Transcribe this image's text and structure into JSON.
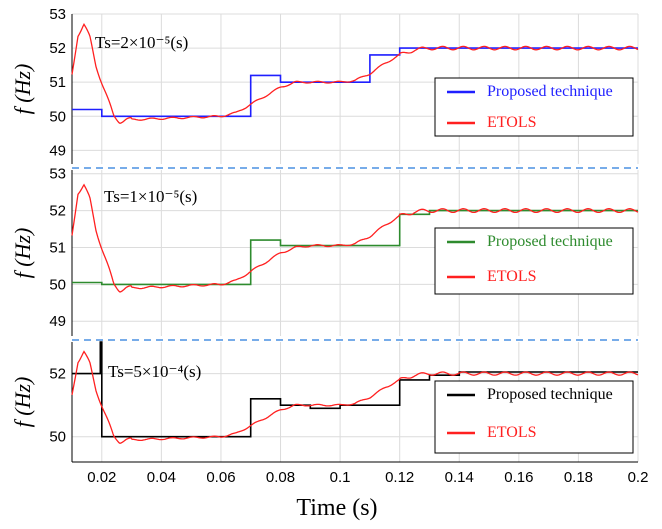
{
  "chart_data": {
    "type": "line",
    "xlabel": "Time (s)",
    "x_ticks": [
      "0.02",
      "0.04",
      "0.06",
      "0.08",
      "0.1",
      "0.12",
      "0.14",
      "0.16",
      "0.18",
      "0.2"
    ],
    "xlim": [
      0.01,
      0.2
    ],
    "grid": true,
    "panels": [
      {
        "ylabel": "f (Hz)",
        "annotation": "Ts=2×10⁻⁵(s)",
        "ylim": [
          48.6,
          53
        ],
        "y_ticks": [
          "53",
          "52",
          "51",
          "50",
          "49"
        ],
        "legend_position": "right",
        "series": [
          {
            "name": "Proposed technique",
            "color": "#1f1fff",
            "kind": "step",
            "x": [
              0.01,
              0.02,
              0.03,
              0.06,
              0.07,
              0.08,
              0.09,
              0.1,
              0.11,
              0.12,
              0.13,
              0.14,
              0.2
            ],
            "y": [
              50.2,
              50.0,
              50.0,
              50.0,
              51.2,
              51.0,
              51.0,
              51.0,
              51.8,
              52.0,
              52.0,
              52.0,
              52.0
            ]
          },
          {
            "name": "ETOLS",
            "color": "#ff2020",
            "kind": "ripple",
            "x": [
              0.01,
              0.012,
              0.014,
              0.016,
              0.018,
              0.02,
              0.022,
              0.024,
              0.026,
              0.028,
              0.03,
              0.06,
              0.065,
              0.07,
              0.075,
              0.08,
              0.085,
              0.09,
              0.095,
              0.1,
              0.105,
              0.11,
              0.115,
              0.12,
              0.125,
              0.13,
              0.135,
              0.14,
              0.2
            ],
            "y": [
              51.2,
              52.4,
              52.7,
              52.3,
              51.5,
              51.0,
              50.5,
              50.0,
              49.85,
              49.9,
              49.9,
              50.0,
              50.1,
              50.35,
              50.6,
              50.85,
              51.0,
              51.0,
              51.0,
              51.0,
              51.05,
              51.25,
              51.55,
              51.8,
              51.95,
              52.0,
              52.0,
              52.0,
              52.0
            ]
          }
        ]
      },
      {
        "ylabel": "f (Hz)",
        "annotation": "Ts=1×10⁻⁵(s)",
        "ylim": [
          48.6,
          53.1
        ],
        "y_ticks": [
          "53",
          "52",
          "51",
          "50",
          "49"
        ],
        "legend_position": "right",
        "series": [
          {
            "name": "Proposed technique",
            "color": "#2e8b2e",
            "kind": "step",
            "x": [
              0.01,
              0.02,
              0.03,
              0.06,
              0.07,
              0.08,
              0.09,
              0.1,
              0.11,
              0.12,
              0.13,
              0.14,
              0.2
            ],
            "y": [
              50.05,
              50.0,
              50.0,
              50.0,
              51.2,
              51.05,
              51.05,
              51.05,
              51.05,
              51.9,
              52.0,
              52.0,
              52.0
            ]
          },
          {
            "name": "ETOLS",
            "color": "#ff2020",
            "kind": "ripple",
            "x": [
              0.01,
              0.012,
              0.014,
              0.016,
              0.018,
              0.02,
              0.022,
              0.024,
              0.026,
              0.028,
              0.03,
              0.06,
              0.065,
              0.07,
              0.075,
              0.08,
              0.085,
              0.09,
              0.095,
              0.1,
              0.105,
              0.11,
              0.115,
              0.12,
              0.125,
              0.13,
              0.135,
              0.14,
              0.2
            ],
            "y": [
              51.3,
              52.5,
              52.7,
              52.3,
              51.5,
              51.0,
              50.5,
              50.0,
              49.85,
              49.9,
              49.9,
              50.0,
              50.1,
              50.35,
              50.6,
              50.85,
              51.0,
              51.05,
              51.05,
              51.05,
              51.1,
              51.3,
              51.6,
              51.85,
              51.97,
              52.0,
              52.0,
              52.0,
              52.0
            ]
          }
        ]
      },
      {
        "ylabel": "f (Hz)",
        "annotation": "Ts=5×10⁻⁴(s)",
        "ylim": [
          49.2,
          53
        ],
        "y_ticks": [
          "52",
          "50"
        ],
        "legend_position": "bottom-right",
        "series": [
          {
            "name": "Proposed technique",
            "color": "#000000",
            "kind": "step",
            "x": [
              0.01,
              0.0195,
              0.02,
              0.03,
              0.06,
              0.07,
              0.08,
              0.09,
              0.1,
              0.11,
              0.12,
              0.13,
              0.14,
              0.2
            ],
            "y": [
              52.0,
              53.0,
              50.0,
              50.0,
              50.0,
              51.2,
              51.0,
              50.9,
              51.0,
              51.0,
              51.8,
              51.95,
              52.05,
              52.05
            ]
          },
          {
            "name": "ETOLS",
            "color": "#ff2020",
            "kind": "ripple",
            "x": [
              0.01,
              0.012,
              0.014,
              0.016,
              0.018,
              0.02,
              0.022,
              0.024,
              0.026,
              0.028,
              0.03,
              0.06,
              0.065,
              0.07,
              0.075,
              0.08,
              0.085,
              0.09,
              0.095,
              0.1,
              0.105,
              0.11,
              0.115,
              0.12,
              0.125,
              0.13,
              0.135,
              0.14,
              0.2
            ],
            "y": [
              51.3,
              52.4,
              52.7,
              52.3,
              51.5,
              51.0,
              50.5,
              50.0,
              49.85,
              49.9,
              49.9,
              50.0,
              50.1,
              50.35,
              50.6,
              50.85,
              51.0,
              51.0,
              51.0,
              51.0,
              51.05,
              51.25,
              51.55,
              51.8,
              51.95,
              52.0,
              52.0,
              52.0,
              52.0
            ]
          }
        ]
      }
    ]
  }
}
